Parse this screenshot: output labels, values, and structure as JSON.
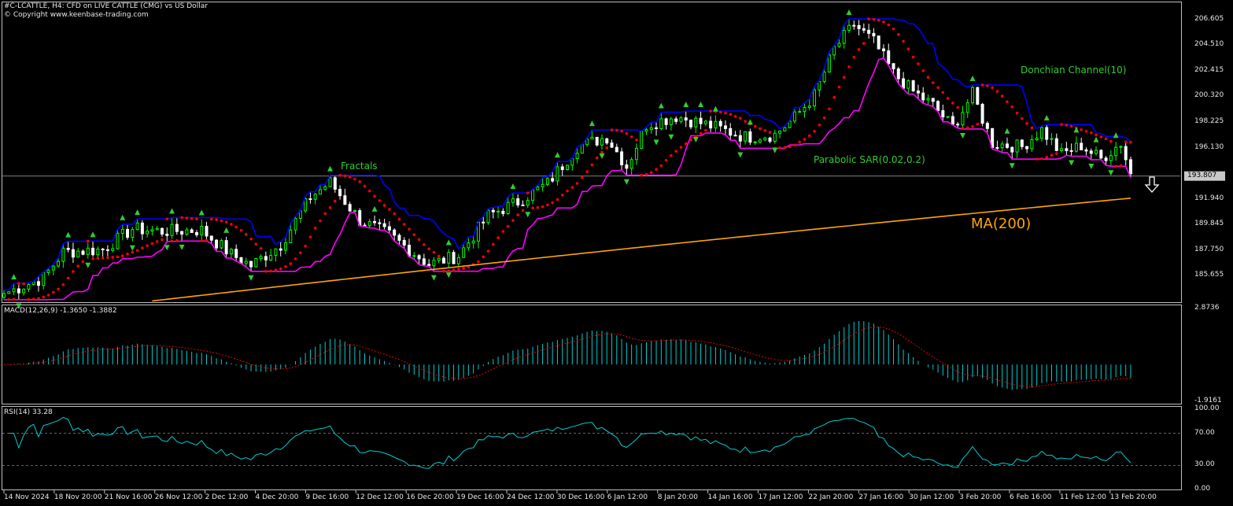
{
  "header": {
    "title": "#C-LCATTLE, H4:  CFD on LIVE CATTLE (CMG) vs US Dollar",
    "copyright": "© Copyright www.keenbase-trading.com"
  },
  "chart_data": [
    {
      "type": "candlestick",
      "name": "price",
      "ylim": [
        183.5,
        208.0
      ],
      "y_ticks": [
        "206.605",
        "204.510",
        "202.415",
        "200.320",
        "198.225",
        "196.130",
        "193.807",
        "191.940",
        "189.845",
        "187.750",
        "185.655"
      ],
      "current_price": "193.807",
      "x_tick_labels": [
        "14 Nov 2024",
        "18 Nov 20:00",
        "21 Nov 16:00",
        "26 Nov 12:00",
        "2 Dec 12:00",
        "4 Dec 20:00",
        "9 Dec 16:00",
        "12 Dec 12:00",
        "16 Dec 20:00",
        "19 Dec 16:00",
        "24 Dec 12:00",
        "30 Dec 16:00",
        "6 Jan 12:00",
        "8 Jan 20:00",
        "14 Jan 16:00",
        "17 Jan 12:00",
        "22 Jan 20:00",
        "27 Jan 16:00",
        "30 Jan 12:00",
        "3 Feb 20:00",
        "6 Feb 16:00",
        "11 Feb 12:00",
        "13 Feb 20:00"
      ],
      "close_anchors": [
        [
          0,
          184.2
        ],
        [
          8,
          185.5
        ],
        [
          12,
          187.6
        ],
        [
          20,
          187.8
        ],
        [
          26,
          189.5
        ],
        [
          32,
          189.3
        ],
        [
          40,
          189.4
        ],
        [
          46,
          187.4
        ],
        [
          50,
          186.5
        ],
        [
          56,
          188.2
        ],
        [
          62,
          192.1
        ],
        [
          66,
          193.3
        ],
        [
          72,
          190.2
        ],
        [
          78,
          189.0
        ],
        [
          86,
          186.6
        ],
        [
          92,
          187.3
        ],
        [
          98,
          190.6
        ],
        [
          104,
          191.7
        ],
        [
          110,
          193.2
        ],
        [
          116,
          196.2
        ],
        [
          122,
          197.0
        ],
        [
          126,
          194.6
        ],
        [
          130,
          198.0
        ],
        [
          136,
          198.7
        ],
        [
          144,
          197.8
        ],
        [
          150,
          197.0
        ],
        [
          156,
          197.2
        ],
        [
          160,
          198.6
        ],
        [
          164,
          200.4
        ],
        [
          168,
          204.2
        ],
        [
          172,
          206.2
        ],
        [
          176,
          204.8
        ],
        [
          180,
          202.2
        ],
        [
          184,
          200.7
        ],
        [
          188,
          199.6
        ],
        [
          192,
          197.8
        ],
        [
          196,
          200.5
        ],
        [
          200,
          196.5
        ],
        [
          206,
          196.2
        ],
        [
          210,
          197.6
        ],
        [
          214,
          195.6
        ],
        [
          218,
          196.3
        ],
        [
          222,
          195.2
        ],
        [
          226,
          196.5
        ],
        [
          228,
          194.0
        ]
      ],
      "indicators": [
        "Fractals",
        "Parabolic SAR(0.02,0.2)",
        "Donchian Channel(10)",
        "MA(200)"
      ],
      "colors": {
        "bull": "#00ff00",
        "bear": "#ffffff",
        "donchian_upper": "#0000ff",
        "donchian_lower": "#ff00ff",
        "sar": "#ff0000",
        "ma200": "#ffa500",
        "fractal": "#32cd32"
      }
    },
    {
      "type": "bar",
      "name": "MACD(12,26,9)",
      "header": "MACD(12,26,9) -1.3650 -1.3882",
      "y_ticks": [
        "2.8736",
        "-1.9161"
      ],
      "ylim": [
        -1.9161,
        2.8736
      ],
      "colors": {
        "hist": "#00ced1",
        "signal": "#ff0000"
      }
    },
    {
      "type": "line",
      "name": "RSI(14)",
      "header": "RSI(14) 33.28",
      "y_ticks": [
        "100.00",
        "70.00",
        "30.00",
        "0.00"
      ],
      "ylim": [
        0,
        100
      ],
      "levels": [
        70,
        30
      ],
      "colors": {
        "line": "#00ced1"
      }
    }
  ],
  "annotations": {
    "fractals": "Fractals",
    "sar": "Parabolic SAR(0.02,0.2)",
    "donchian": "Donchian Channel(10)",
    "ma": "MA(200)",
    "signal_arrow": "down-arrow-icon"
  }
}
